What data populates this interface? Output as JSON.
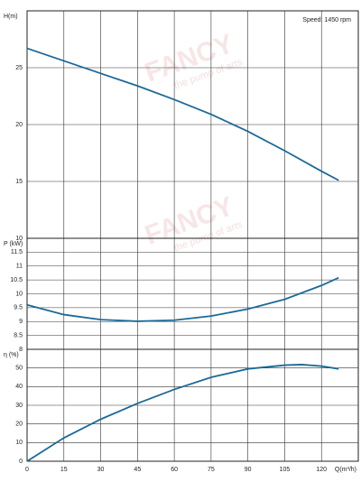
{
  "chart_data": [
    {
      "type": "line",
      "ylabel": "H(m)",
      "annotation": "Speed: 1450 rpm",
      "x": [
        0,
        15,
        30,
        45,
        60,
        75,
        90,
        105,
        120,
        127
      ],
      "series": [
        {
          "name": "H",
          "color": "#1b6a98",
          "values": [
            26.7,
            25.6,
            24.5,
            23.4,
            22.2,
            20.9,
            19.4,
            17.7,
            15.9,
            15.1
          ]
        }
      ],
      "xlim": [
        0,
        135
      ],
      "xticks": [
        0,
        15,
        30,
        45,
        60,
        75,
        90,
        105,
        120
      ],
      "ylim": [
        10,
        30
      ],
      "yticks": [
        10,
        15,
        20,
        25
      ],
      "grid": true
    },
    {
      "type": "line",
      "ylabel": "P (kW)",
      "x": [
        0,
        15,
        30,
        45,
        60,
        75,
        90,
        105,
        120,
        127
      ],
      "series": [
        {
          "name": "P",
          "color": "#1b6a98",
          "values": [
            9.6,
            9.25,
            9.07,
            9.01,
            9.05,
            9.2,
            9.45,
            9.8,
            10.3,
            10.58
          ]
        }
      ],
      "xlim": [
        0,
        135
      ],
      "xticks": [
        0,
        15,
        30,
        45,
        60,
        75,
        90,
        105,
        120
      ],
      "ylim": [
        8,
        12
      ],
      "yticks": [
        8,
        8.5,
        9,
        9.5,
        10,
        10.5,
        11,
        11.5
      ],
      "grid": true
    },
    {
      "type": "line",
      "ylabel": "η (%)",
      "xlabel": "Q(m³/h)",
      "x": [
        0,
        15,
        30,
        45,
        60,
        75,
        90,
        105,
        112,
        120,
        127
      ],
      "series": [
        {
          "name": "η",
          "color": "#1b6a98",
          "values": [
            0,
            12.5,
            22.5,
            31,
            38.5,
            45,
            49.5,
            51.5,
            51.8,
            51,
            49.5
          ]
        }
      ],
      "xlim": [
        0,
        135
      ],
      "xticks": [
        0,
        15,
        30,
        45,
        60,
        75,
        90,
        105,
        120
      ],
      "ylim": [
        0,
        60
      ],
      "yticks": [
        0,
        10,
        20,
        30,
        40,
        50
      ],
      "grid": true
    }
  ],
  "watermark": {
    "brand": "FANCY",
    "slogan": "the pump of arts"
  }
}
